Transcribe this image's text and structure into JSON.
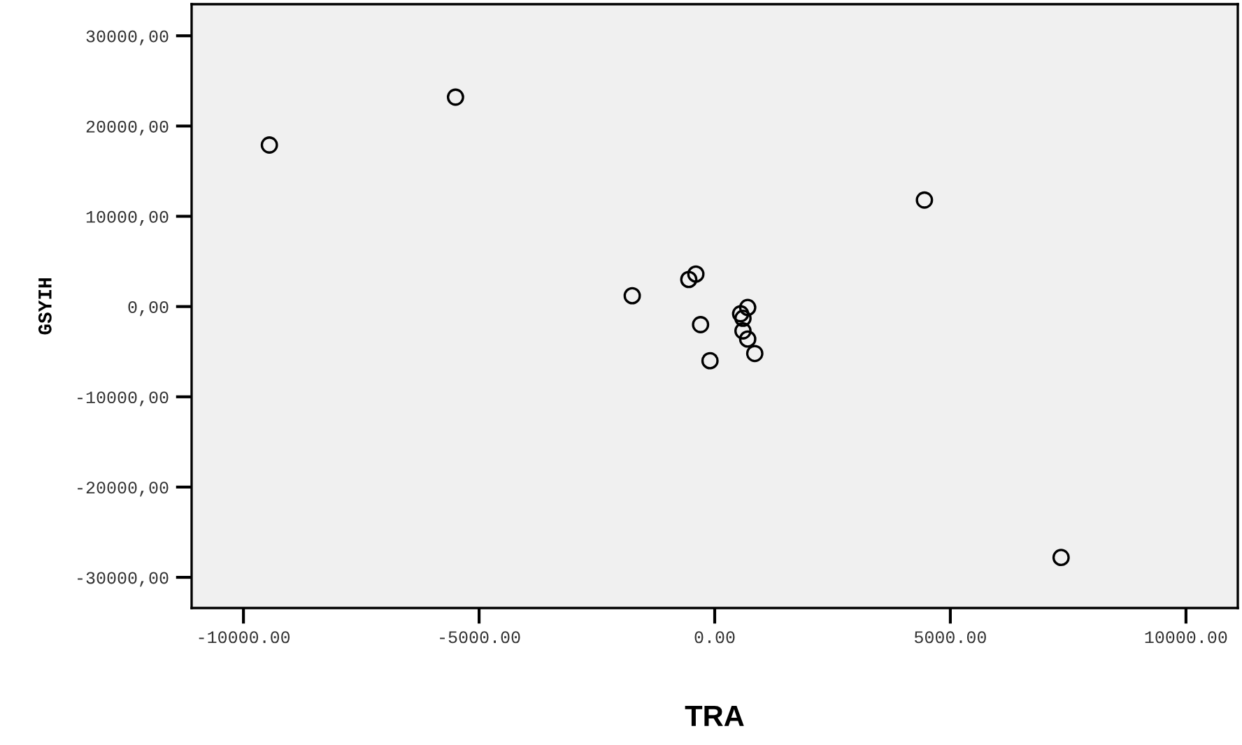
{
  "chart_data": {
    "type": "scatter",
    "xlabel": "TRA",
    "ylabel": "GSYIH",
    "x": [
      -9450,
      -5500,
      4450,
      7350,
      -1750,
      -550,
      -400,
      -300,
      -100,
      700,
      550,
      600,
      600,
      650,
      700,
      850
    ],
    "values": [
      17900,
      23200,
      11800,
      -27800,
      1200,
      3000,
      3600,
      -2000,
      -6000,
      -100,
      -800,
      -1300,
      -2700,
      null,
      -3600,
      -5200
    ],
    "color": "#000000",
    "marker": "circle",
    "grid": false,
    "xlim": [
      -11100,
      11100
    ],
    "ylim": [
      -33400,
      33500
    ],
    "xticks": [
      {
        "value": -10000,
        "label": "-10000.00"
      },
      {
        "value": -5000,
        "label": "-5000.00"
      },
      {
        "value": 0,
        "label": "0.00"
      },
      {
        "value": 5000,
        "label": "5000.00"
      },
      {
        "value": 10000,
        "label": "10000.00"
      }
    ],
    "yticks": [
      {
        "value": -30000,
        "label": "-30000,00"
      },
      {
        "value": -20000,
        "label": "-20000,00"
      },
      {
        "value": -10000,
        "label": "-10000,00"
      },
      {
        "value": 0,
        "label": "0,00"
      },
      {
        "value": 10000,
        "label": "10000,00"
      },
      {
        "value": 20000,
        "label": "20000,00"
      },
      {
        "value": 30000,
        "label": "30000,00"
      }
    ]
  }
}
